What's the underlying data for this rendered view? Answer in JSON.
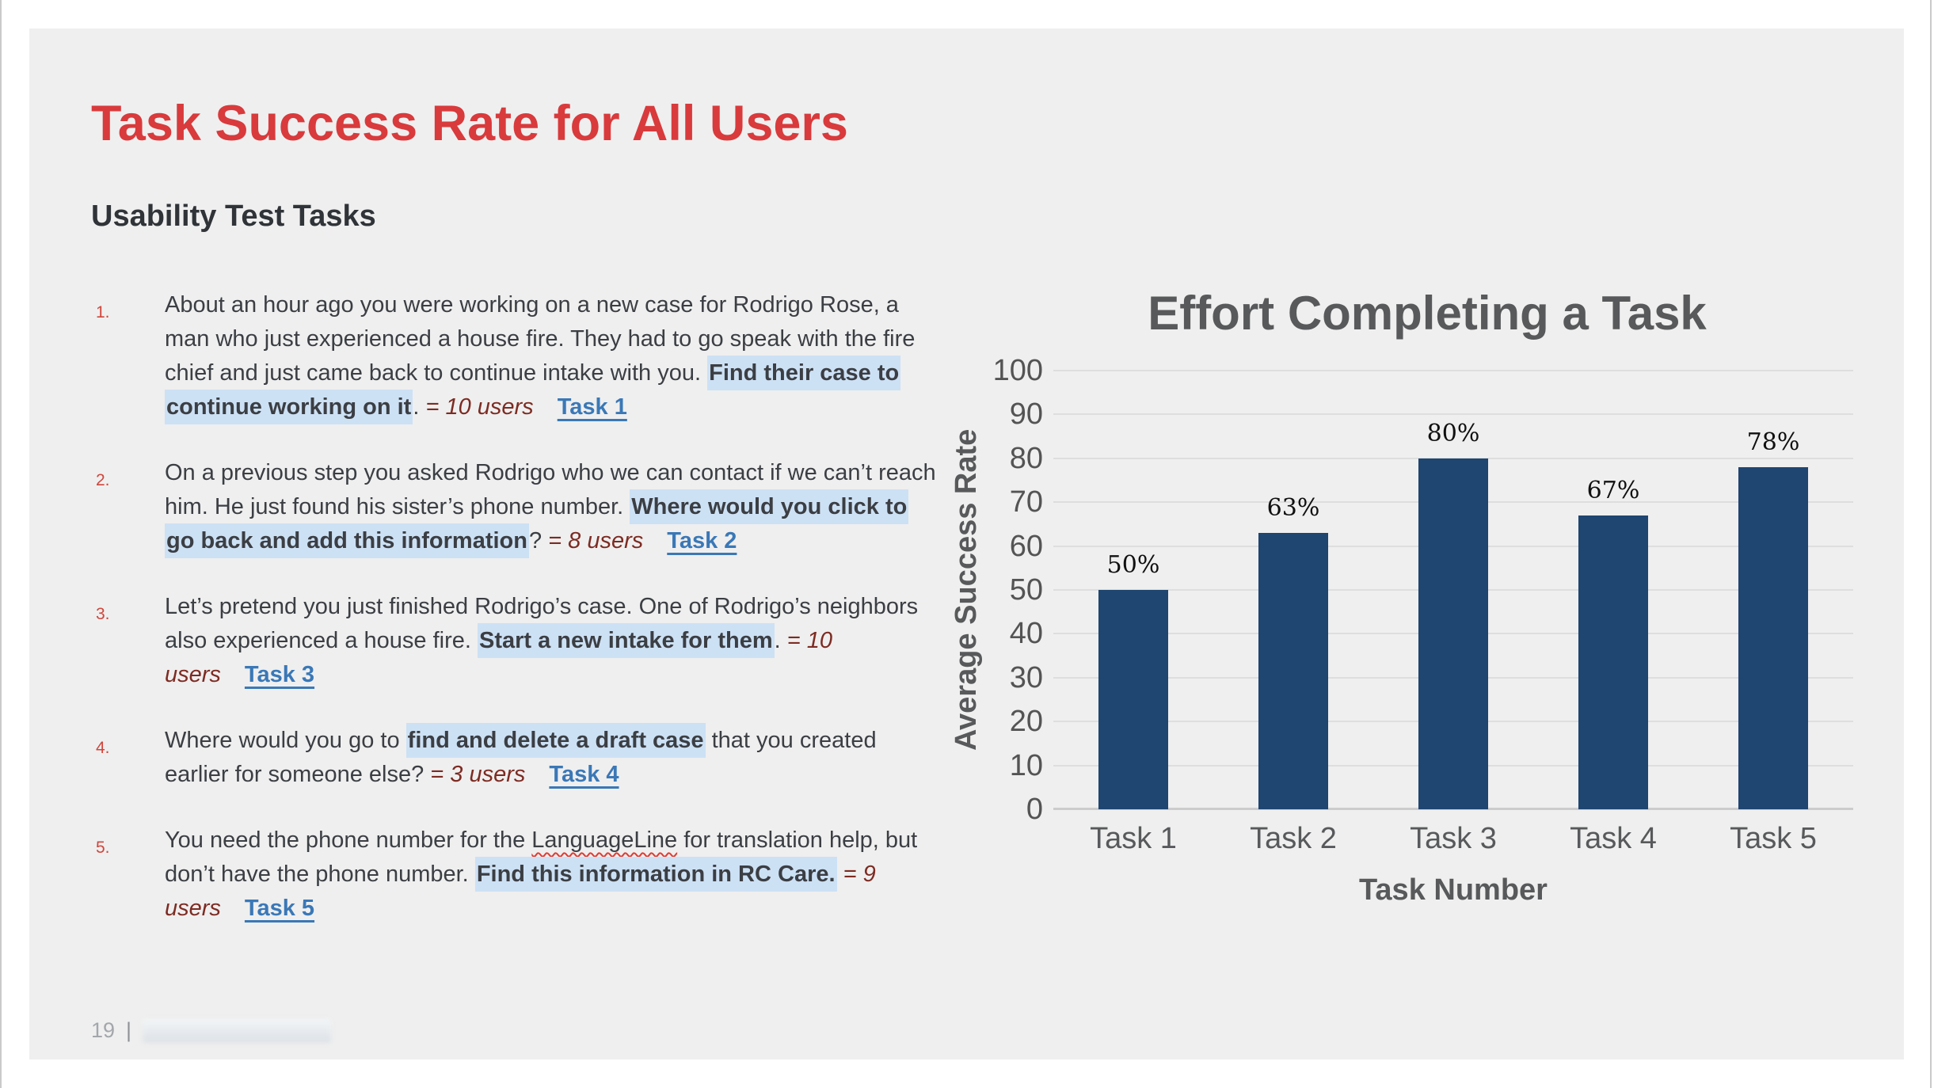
{
  "colors": {
    "slide_background": "#efefef",
    "page_background": "#ffffff",
    "title_red": "#d93a3c",
    "body_text": "#3b3e43",
    "highlight_blue": "#cde1f5",
    "users_maroon": "#7d2b22",
    "link_blue": "#3a78b7",
    "bar_navy": "#1f4571",
    "chart_text_gray": "#58595b"
  },
  "slide": {
    "title": "Task Success Rate for All Users",
    "subtitle": "Usability Test Tasks"
  },
  "tasks": [
    {
      "number": "1.",
      "segments": [
        {
          "style": "plain",
          "text": "About an hour ago you were working on a new case for Rodrigo Rose, a man who just experienced a house fire. They had to go speak with the fire chief and just came back to continue intake with you. "
        },
        {
          "style": "highlight",
          "text": "Find their case to continue working on it"
        },
        {
          "style": "plain",
          "text": ". "
        },
        {
          "style": "users",
          "text": "= 10 users"
        },
        {
          "style": "link",
          "text": "Task 1"
        }
      ]
    },
    {
      "number": "2.",
      "segments": [
        {
          "style": "plain",
          "text": "On a previous step you asked Rodrigo who we can contact if we can’t reach him. He just found his sister’s phone number. "
        },
        {
          "style": "highlight",
          "text": "Where would you click to go back and add this information"
        },
        {
          "style": "plain",
          "text": "? "
        },
        {
          "style": "users",
          "text": "= 8 users"
        },
        {
          "style": "link",
          "text": "Task 2"
        }
      ]
    },
    {
      "number": "3.",
      "segments": [
        {
          "style": "plain",
          "text": "Let’s pretend you just finished Rodrigo’s case. One of Rodrigo’s neighbors also experienced a house fire. "
        },
        {
          "style": "highlight",
          "text": "Start a new intake for them"
        },
        {
          "style": "plain",
          "text": ". "
        },
        {
          "style": "users",
          "text": "= 10 users"
        },
        {
          "style": "link",
          "text": "Task 3"
        }
      ]
    },
    {
      "number": "4.",
      "segments": [
        {
          "style": "plain",
          "text": "Where would you go to "
        },
        {
          "style": "highlight",
          "text": "find and delete a draft case"
        },
        {
          "style": "plain",
          "text": " that you created earlier for someone else? "
        },
        {
          "style": "users",
          "text": "= 3 users"
        },
        {
          "style": "link",
          "text": "Task 4"
        }
      ]
    },
    {
      "number": "5.",
      "segments": [
        {
          "style": "plain",
          "text": "You need the phone number for the "
        },
        {
          "style": "spellcheck",
          "text": "LanguageLine"
        },
        {
          "style": "plain",
          "text": " for translation help, but don’t have the phone number. "
        },
        {
          "style": "highlight",
          "text": "Find this information in RC Care."
        },
        {
          "style": "users",
          "text": " = 9 users"
        },
        {
          "style": "link",
          "text": "Task 5"
        }
      ]
    }
  ],
  "footer": {
    "page_number": "19",
    "separator": "|"
  },
  "chart_data": {
    "type": "bar",
    "title": "Effort Completing a Task",
    "xlabel": "Task Number",
    "ylabel": "Average Success Rate",
    "categories": [
      "Task 1",
      "Task 2",
      "Task 3",
      "Task 4",
      "Task 5"
    ],
    "values": [
      50,
      63,
      80,
      67,
      78
    ],
    "data_labels": [
      "50%",
      "63%",
      "80%",
      "67%",
      "78%"
    ],
    "ylim": [
      0,
      100
    ],
    "yticks": [
      0,
      10,
      20,
      30,
      40,
      50,
      60,
      70,
      80,
      90,
      100
    ],
    "grid": true,
    "legend": false,
    "bar_color": "#1f4571"
  }
}
